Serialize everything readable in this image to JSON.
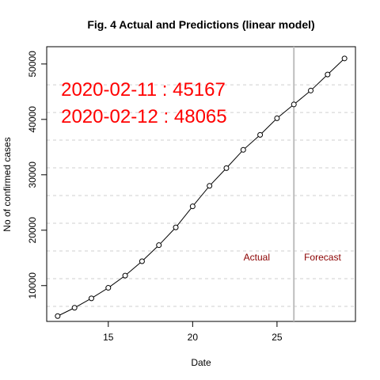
{
  "chart_data": {
    "type": "line",
    "title": "Fig. 4 Actual and Predictions (linear model)",
    "xlabel": "Date",
    "ylabel": "No of confirmed cases",
    "xlim": [
      11.35,
      29.65
    ],
    "ylim": [
      3535,
      53120
    ],
    "x_ticks": [
      15,
      20,
      25
    ],
    "y_ticks": [
      10000,
      20000,
      30000,
      40000,
      50000
    ],
    "grid": {
      "horizontal": true,
      "vertical": false,
      "style": "dashed"
    },
    "hgrid_values": [
      6250,
      11250,
      16250,
      21250,
      26250,
      31250,
      36250,
      41250,
      46250
    ],
    "series": [
      {
        "x": [
          12,
          13,
          14,
          15,
          16,
          17,
          18,
          19,
          20,
          21,
          22,
          23,
          24,
          25,
          26,
          27,
          28,
          29
        ],
        "y": [
          4500,
          6000,
          7700,
          9600,
          11800,
          14400,
          17300,
          20500,
          24300,
          28000,
          31200,
          34500,
          37200,
          40200,
          42700,
          45200,
          48100,
          51000
        ]
      }
    ],
    "divider": {
      "x": 26
    },
    "region_labels": [
      {
        "text": "Actual",
        "x": 23.8,
        "y": 15000
      },
      {
        "text": "Forecast",
        "x": 27.7,
        "y": 15000
      }
    ],
    "annotations": [
      {
        "text": "2020-02-11 : 45167",
        "x": 12.2,
        "y": 45200
      },
      {
        "text": "2020-02-12 : 48065",
        "x": 12.2,
        "y": 40300
      }
    ],
    "colors": {
      "annotation": "#ff0000",
      "region_label": "#8b0000",
      "divider": "#bebebe",
      "grid": "#cfcfcf",
      "line": "#000000"
    }
  }
}
